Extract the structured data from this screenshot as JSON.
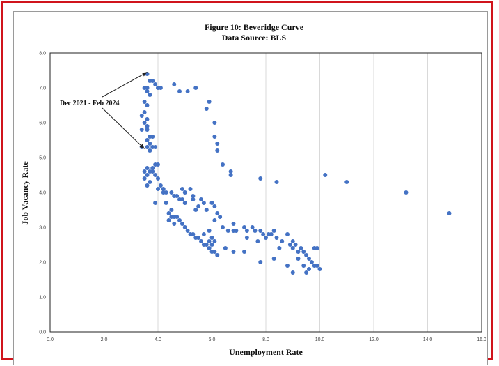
{
  "chart_data": {
    "type": "scatter",
    "title": "Figure 10: Beveridge Curve",
    "subtitle": "Data Source: BLS",
    "xlabel": "Unemployment Rate",
    "ylabel": "Job Vacancy Rate",
    "xlim": [
      0,
      16
    ],
    "ylim": [
      0,
      8
    ],
    "x_ticks": [
      "0.0",
      "2.0",
      "4.0",
      "6.0",
      "8.0",
      "10.0",
      "12.0",
      "14.0",
      "16.0"
    ],
    "y_ticks": [
      "0.0",
      "1.0",
      "2.0",
      "3.0",
      "4.0",
      "5.0",
      "6.0",
      "7.0",
      "8.0"
    ],
    "grid": "vertical",
    "marker_color": "#4472c4",
    "annotation": {
      "text": "Dec 2021 - Feb 2024",
      "arrow_targets": [
        [
          3.6,
          7.45
        ],
        [
          3.5,
          5.25
        ]
      ]
    },
    "series": [
      {
        "values": [
          [
            3.6,
            7.4
          ],
          [
            3.5,
            7.0
          ],
          [
            3.6,
            7.0
          ],
          [
            3.7,
            7.2
          ],
          [
            3.8,
            7.2
          ],
          [
            3.9,
            7.1
          ],
          [
            4.0,
            7.0
          ],
          [
            4.1,
            7.0
          ],
          [
            3.6,
            6.9
          ],
          [
            3.7,
            6.8
          ],
          [
            3.5,
            6.6
          ],
          [
            3.6,
            6.5
          ],
          [
            3.5,
            6.3
          ],
          [
            3.4,
            6.2
          ],
          [
            3.6,
            6.1
          ],
          [
            3.5,
            6.0
          ],
          [
            3.6,
            5.9
          ],
          [
            3.4,
            5.8
          ],
          [
            3.6,
            5.8
          ],
          [
            3.7,
            5.6
          ],
          [
            3.8,
            5.6
          ],
          [
            3.6,
            5.5
          ],
          [
            3.7,
            5.4
          ],
          [
            3.8,
            5.3
          ],
          [
            3.9,
            5.3
          ],
          [
            3.6,
            5.3
          ],
          [
            3.4,
            5.3
          ],
          [
            3.7,
            5.2
          ],
          [
            4.6,
            7.1
          ],
          [
            4.8,
            6.9
          ],
          [
            5.1,
            6.9
          ],
          [
            5.4,
            7.0
          ],
          [
            5.8,
            6.4
          ],
          [
            5.9,
            6.6
          ],
          [
            6.1,
            6.0
          ],
          [
            6.1,
            5.6
          ],
          [
            6.2,
            5.4
          ],
          [
            6.2,
            5.2
          ],
          [
            6.4,
            4.8
          ],
          [
            6.7,
            4.6
          ],
          [
            6.7,
            4.5
          ],
          [
            7.8,
            4.4
          ],
          [
            8.4,
            4.3
          ],
          [
            10.2,
            4.5
          ],
          [
            11.0,
            4.3
          ],
          [
            13.2,
            4.0
          ],
          [
            14.8,
            3.4
          ],
          [
            3.9,
            4.8
          ],
          [
            4.0,
            4.8
          ],
          [
            3.8,
            4.7
          ],
          [
            3.6,
            4.7
          ],
          [
            3.7,
            4.6
          ],
          [
            3.8,
            4.6
          ],
          [
            3.5,
            4.6
          ],
          [
            3.6,
            4.5
          ],
          [
            3.9,
            4.5
          ],
          [
            3.5,
            4.4
          ],
          [
            3.7,
            4.3
          ],
          [
            3.6,
            4.2
          ],
          [
            4.0,
            4.4
          ],
          [
            4.1,
            4.2
          ],
          [
            4.0,
            4.1
          ],
          [
            4.2,
            4.1
          ],
          [
            4.3,
            4.0
          ],
          [
            4.2,
            4.0
          ],
          [
            4.5,
            4.0
          ],
          [
            4.6,
            3.9
          ],
          [
            4.7,
            3.9
          ],
          [
            4.8,
            3.8
          ],
          [
            4.9,
            3.8
          ],
          [
            5.0,
            3.7
          ],
          [
            4.9,
            4.1
          ],
          [
            5.2,
            4.1
          ],
          [
            5.0,
            4.0
          ],
          [
            5.3,
            3.9
          ],
          [
            5.3,
            3.8
          ],
          [
            5.6,
            3.8
          ],
          [
            5.7,
            3.7
          ],
          [
            5.5,
            3.6
          ],
          [
            5.4,
            3.5
          ],
          [
            5.8,
            3.5
          ],
          [
            6.0,
            3.7
          ],
          [
            6.1,
            3.6
          ],
          [
            6.2,
            3.4
          ],
          [
            6.3,
            3.3
          ],
          [
            6.1,
            3.2
          ],
          [
            3.9,
            3.7
          ],
          [
            4.3,
            3.7
          ],
          [
            4.5,
            3.5
          ],
          [
            4.4,
            3.4
          ],
          [
            4.5,
            3.3
          ],
          [
            4.6,
            3.3
          ],
          [
            4.7,
            3.3
          ],
          [
            4.8,
            3.2
          ],
          [
            4.4,
            3.2
          ],
          [
            4.6,
            3.1
          ],
          [
            4.9,
            3.1
          ],
          [
            5.0,
            3.0
          ],
          [
            5.1,
            2.9
          ],
          [
            5.2,
            2.8
          ],
          [
            5.3,
            2.8
          ],
          [
            5.4,
            2.7
          ],
          [
            5.5,
            2.7
          ],
          [
            5.6,
            2.6
          ],
          [
            5.7,
            2.5
          ],
          [
            5.8,
            2.5
          ],
          [
            5.9,
            2.4
          ],
          [
            6.0,
            2.3
          ],
          [
            6.1,
            2.3
          ],
          [
            6.2,
            2.2
          ],
          [
            5.7,
            2.8
          ],
          [
            5.9,
            2.9
          ],
          [
            6.0,
            2.7
          ],
          [
            6.0,
            2.5
          ],
          [
            6.1,
            2.6
          ],
          [
            5.9,
            2.6
          ],
          [
            6.5,
            2.4
          ],
          [
            6.8,
            2.3
          ],
          [
            7.2,
            2.3
          ],
          [
            6.4,
            3.0
          ],
          [
            6.6,
            2.9
          ],
          [
            6.8,
            2.9
          ],
          [
            6.9,
            2.9
          ],
          [
            7.2,
            3.0
          ],
          [
            7.3,
            2.9
          ],
          [
            7.5,
            3.0
          ],
          [
            7.6,
            2.9
          ],
          [
            7.8,
            2.9
          ],
          [
            7.9,
            2.8
          ],
          [
            8.0,
            2.7
          ],
          [
            8.1,
            2.8
          ],
          [
            8.2,
            2.8
          ],
          [
            8.3,
            2.9
          ],
          [
            8.4,
            2.7
          ],
          [
            8.6,
            2.6
          ],
          [
            8.8,
            2.8
          ],
          [
            9.0,
            2.6
          ],
          [
            9.1,
            2.5
          ],
          [
            9.0,
            2.4
          ],
          [
            9.2,
            2.3
          ],
          [
            9.3,
            2.4
          ],
          [
            9.4,
            2.3
          ],
          [
            9.5,
            2.2
          ],
          [
            9.6,
            2.1
          ],
          [
            9.7,
            2.0
          ],
          [
            9.8,
            1.9
          ],
          [
            9.9,
            1.9
          ],
          [
            10.0,
            1.8
          ],
          [
            9.8,
            2.4
          ],
          [
            9.9,
            2.4
          ],
          [
            9.6,
            1.8
          ],
          [
            9.5,
            1.7
          ],
          [
            9.4,
            1.9
          ],
          [
            9.0,
            1.7
          ],
          [
            8.8,
            1.9
          ],
          [
            8.3,
            2.1
          ],
          [
            7.8,
            2.0
          ],
          [
            6.8,
            3.1
          ],
          [
            7.3,
            2.7
          ],
          [
            7.7,
            2.6
          ],
          [
            8.5,
            2.4
          ],
          [
            8.9,
            2.5
          ],
          [
            9.2,
            2.1
          ]
        ]
      }
    ]
  }
}
